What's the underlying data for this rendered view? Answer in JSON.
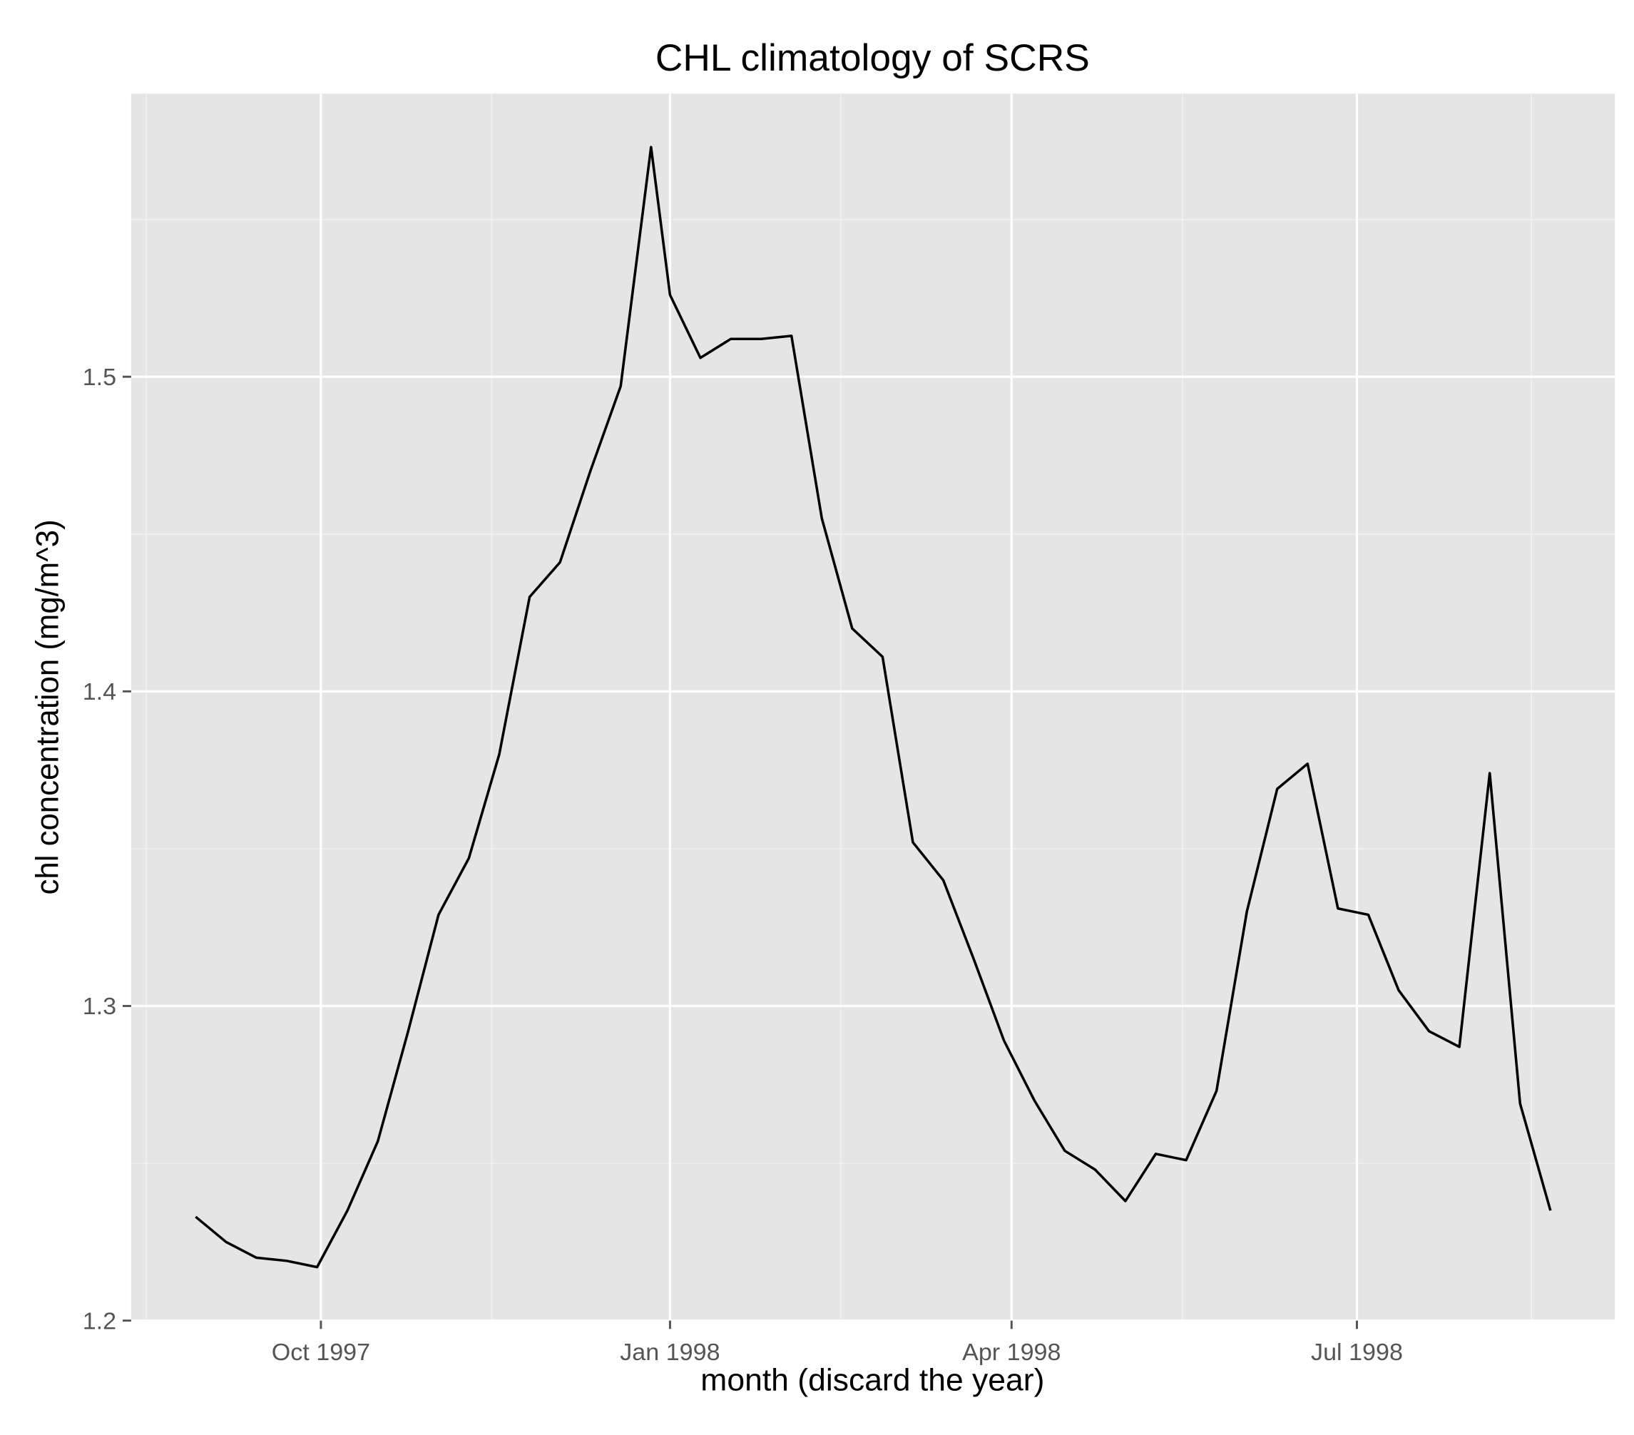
{
  "chart_data": {
    "type": "line",
    "title": "CHL climatology of SCRS",
    "x_label": "month (discard the year)",
    "y_label": "chl concentration (mg/m^3)",
    "x": [
      "1997-08-29",
      "1997-09-06",
      "1997-09-14",
      "1997-09-22",
      "1997-09-30",
      "1997-10-08",
      "1997-10-16",
      "1997-10-24",
      "1997-11-01",
      "1997-11-09",
      "1997-11-17",
      "1997-11-25",
      "1997-12-03",
      "1997-12-11",
      "1997-12-19",
      "1997-12-27",
      "1998-01-01",
      "1998-01-09",
      "1998-01-17",
      "1998-01-25",
      "1998-02-02",
      "1998-02-10",
      "1998-02-18",
      "1998-02-26",
      "1998-03-06",
      "1998-03-14",
      "1998-03-22",
      "1998-03-30",
      "1998-04-07",
      "1998-04-15",
      "1998-04-23",
      "1998-05-01",
      "1998-05-09",
      "1998-05-17",
      "1998-05-25",
      "1998-06-02",
      "1998-06-10",
      "1998-06-18",
      "1998-06-26",
      "1998-07-04",
      "1998-07-12",
      "1998-07-20",
      "1998-07-28",
      "1998-08-05",
      "1998-08-13",
      "1998-08-21"
    ],
    "series": [
      {
        "name": "chl",
        "color": "#000000",
        "values": [
          1.233,
          1.225,
          1.22,
          1.219,
          1.217,
          1.235,
          1.257,
          1.292,
          1.329,
          1.347,
          1.38,
          1.43,
          1.441,
          1.47,
          1.497,
          1.573,
          1.526,
          1.506,
          1.512,
          1.512,
          1.513,
          1.455,
          1.42,
          1.411,
          1.352,
          1.34,
          1.315,
          1.289,
          1.27,
          1.254,
          1.248,
          1.238,
          1.253,
          1.251,
          1.273,
          1.33,
          1.369,
          1.377,
          1.331,
          1.329,
          1.305,
          1.292,
          1.287,
          1.374,
          1.269,
          1.235
        ]
      }
    ],
    "xlim": [
      "1997-08-12",
      "1998-09-07"
    ],
    "xticks": [
      {
        "value": "1997-10-01",
        "label": "Oct 1997"
      },
      {
        "value": "1998-01-01",
        "label": "Jan 1998"
      },
      {
        "value": "1998-04-01",
        "label": "Apr 1998"
      },
      {
        "value": "1998-07-01",
        "label": "Jul 1998"
      }
    ],
    "x_minor_grid": [
      "1997-08-16",
      "1997-11-15",
      "1998-02-15",
      "1998-05-16",
      "1998-08-16"
    ],
    "ylim": [
      1.2,
      1.59
    ],
    "yticks": [
      1.2,
      1.3,
      1.4,
      1.5
    ],
    "y_minor_grid": [
      1.25,
      1.35,
      1.45,
      1.55
    ],
    "grid": true
  }
}
